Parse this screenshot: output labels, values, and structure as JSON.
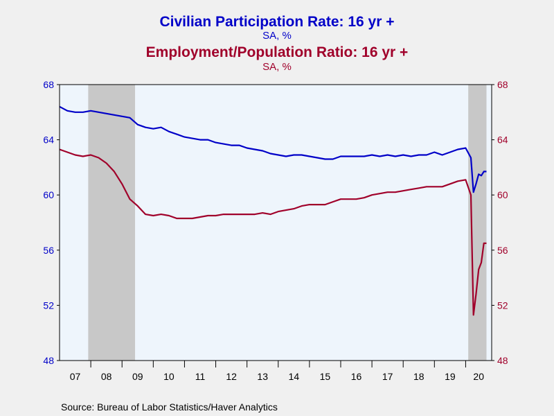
{
  "source": "Source:  Bureau of Labor Statistics/Haver Analytics",
  "chart_data": {
    "type": "line",
    "titles": [
      {
        "title": "Civilian Participation Rate: 16 yr +",
        "subtitle": "SA, %",
        "color": "#0000c8"
      },
      {
        "title": "Employment/Population Ratio: 16 yr +",
        "subtitle": "SA, %",
        "color": "#a0002a"
      }
    ],
    "xlim": [
      2007.0,
      2020.833
    ],
    "x_ticks": [
      "07",
      "08",
      "09",
      "10",
      "11",
      "12",
      "13",
      "14",
      "15",
      "16",
      "17",
      "18",
      "19",
      "20"
    ],
    "y_left": {
      "ylim": [
        48,
        68
      ],
      "ticks": [
        "48",
        "52",
        "56",
        "60",
        "64",
        "68"
      ],
      "color": "#0000c8"
    },
    "y_right": {
      "ylim": [
        48,
        68
      ],
      "ticks": [
        "48",
        "52",
        "56",
        "60",
        "64",
        "68"
      ],
      "color": "#a0002a"
    },
    "recessions": [
      [
        2007.917,
        2009.417
      ],
      [
        2020.083,
        2020.667
      ]
    ],
    "grid": false,
    "colors": {
      "plot_bg": "#eef5fc",
      "recession": "#c8c8c8"
    },
    "series": [
      {
        "name": "Civilian Participation Rate: 16 yr +",
        "axis": "left",
        "color": "#0000c8",
        "x": [
          2007.0,
          2007.25,
          2007.5,
          2007.75,
          2008.0,
          2008.25,
          2008.5,
          2008.75,
          2009.0,
          2009.25,
          2009.5,
          2009.75,
          2010.0,
          2010.25,
          2010.5,
          2010.75,
          2011.0,
          2011.25,
          2011.5,
          2011.75,
          2012.0,
          2012.25,
          2012.5,
          2012.75,
          2013.0,
          2013.25,
          2013.5,
          2013.75,
          2014.0,
          2014.25,
          2014.5,
          2014.75,
          2015.0,
          2015.25,
          2015.5,
          2015.75,
          2016.0,
          2016.25,
          2016.5,
          2016.75,
          2017.0,
          2017.25,
          2017.5,
          2017.75,
          2018.0,
          2018.25,
          2018.5,
          2018.75,
          2019.0,
          2019.25,
          2019.5,
          2019.75,
          2020.0,
          2020.167,
          2020.25,
          2020.333,
          2020.417,
          2020.5,
          2020.583,
          2020.667
        ],
        "y": [
          66.4,
          66.1,
          66.0,
          66.0,
          66.1,
          66.0,
          65.9,
          65.8,
          65.7,
          65.6,
          65.1,
          64.9,
          64.8,
          64.9,
          64.6,
          64.4,
          64.2,
          64.1,
          64.0,
          64.0,
          63.8,
          63.7,
          63.6,
          63.6,
          63.4,
          63.3,
          63.2,
          63.0,
          62.9,
          62.8,
          62.9,
          62.9,
          62.8,
          62.7,
          62.6,
          62.6,
          62.8,
          62.8,
          62.8,
          62.8,
          62.9,
          62.8,
          62.9,
          62.8,
          62.9,
          62.8,
          62.9,
          62.9,
          63.1,
          62.9,
          63.1,
          63.3,
          63.4,
          62.7,
          60.2,
          60.8,
          61.5,
          61.4,
          61.7,
          61.7
        ]
      },
      {
        "name": "Employment/Population Ratio: 16 yr +",
        "axis": "right",
        "color": "#a0002a",
        "x": [
          2007.0,
          2007.25,
          2007.5,
          2007.75,
          2008.0,
          2008.25,
          2008.5,
          2008.75,
          2009.0,
          2009.25,
          2009.5,
          2009.75,
          2010.0,
          2010.25,
          2010.5,
          2010.75,
          2011.0,
          2011.25,
          2011.5,
          2011.75,
          2012.0,
          2012.25,
          2012.5,
          2012.75,
          2013.0,
          2013.25,
          2013.5,
          2013.75,
          2014.0,
          2014.25,
          2014.5,
          2014.75,
          2015.0,
          2015.25,
          2015.5,
          2015.75,
          2016.0,
          2016.25,
          2016.5,
          2016.75,
          2017.0,
          2017.25,
          2017.5,
          2017.75,
          2018.0,
          2018.25,
          2018.5,
          2018.75,
          2019.0,
          2019.25,
          2019.5,
          2019.75,
          2020.0,
          2020.167,
          2020.25,
          2020.333,
          2020.417,
          2020.5,
          2020.583,
          2020.667
        ],
        "y": [
          63.3,
          63.1,
          62.9,
          62.8,
          62.9,
          62.7,
          62.3,
          61.7,
          60.8,
          59.7,
          59.2,
          58.6,
          58.5,
          58.6,
          58.5,
          58.3,
          58.3,
          58.3,
          58.4,
          58.5,
          58.5,
          58.6,
          58.6,
          58.6,
          58.6,
          58.6,
          58.7,
          58.6,
          58.8,
          58.9,
          59.0,
          59.2,
          59.3,
          59.3,
          59.3,
          59.5,
          59.7,
          59.7,
          59.7,
          59.8,
          60.0,
          60.1,
          60.2,
          60.2,
          60.3,
          60.4,
          60.5,
          60.6,
          60.6,
          60.6,
          60.8,
          61.0,
          61.1,
          60.0,
          51.3,
          52.8,
          54.6,
          55.1,
          56.5,
          56.5
        ]
      }
    ]
  }
}
